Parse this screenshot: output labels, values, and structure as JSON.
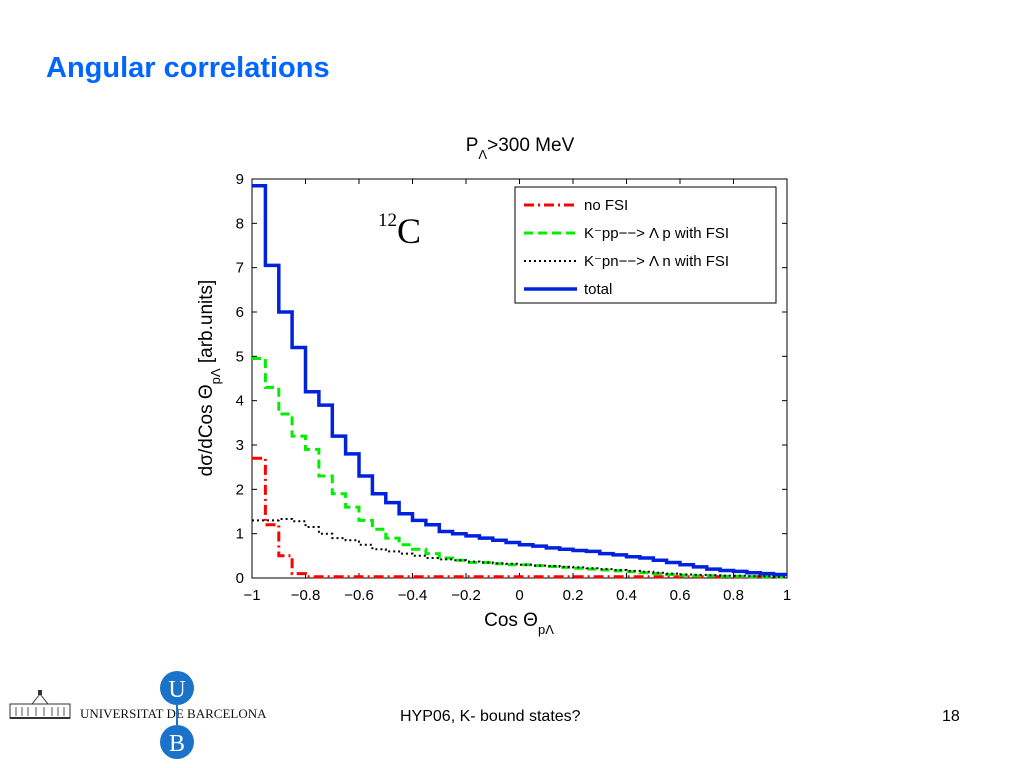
{
  "slide": {
    "title": "Angular correlations",
    "footer_center": "HYP06, K- bound states?",
    "page_number": "18",
    "university": "UNIVERSITAT DE BARCELONA",
    "logo_letters": [
      "U",
      "B"
    ],
    "logo_color": "#1a73c8"
  },
  "chart_data": {
    "type": "line",
    "step": true,
    "title": "P",
    "title_sub": "Λ",
    "title_rest": ">300 MeV",
    "annotation_sup": "12",
    "annotation": "C",
    "xlabel": "Cos Θ",
    "xlabel_sub": "pΛ",
    "ylabel": "dσ/dCos Θ",
    "ylabel_sub": "pΛ",
    "ylabel_rest": " [arb.units]",
    "xlim": [
      -1,
      1
    ],
    "ylim": [
      0,
      9
    ],
    "xticks": [
      -1,
      -0.8,
      -0.6,
      -0.4,
      -0.2,
      0,
      0.2,
      0.4,
      0.6,
      0.8,
      1
    ],
    "xtick_labels": [
      "−1",
      "−0.8",
      "−0.6",
      "−0.4",
      "−0.2",
      "0",
      "0.2",
      "0.4",
      "0.6",
      "0.8",
      "1"
    ],
    "yticks": [
      0,
      1,
      2,
      3,
      4,
      5,
      6,
      7,
      8,
      9
    ],
    "ytick_labels": [
      "0",
      "1",
      "2",
      "3",
      "4",
      "5",
      "6",
      "7",
      "8",
      "9"
    ],
    "grid": false,
    "legend_position": "top-right",
    "series": [
      {
        "name": "no FSI",
        "color": "#ff0000",
        "style": "dashdot",
        "width": 3,
        "x": [
          -1,
          -0.95,
          -0.9,
          -0.85,
          -0.8,
          -0.75,
          -0.7,
          -0.65,
          -0.6,
          -0.55,
          -0.5,
          -0.45,
          -0.4,
          -0.35,
          -0.3,
          -0.25,
          -0.2,
          -0.15,
          -0.1,
          -0.05,
          0,
          0.05,
          0.1,
          0.15,
          0.2,
          0.25,
          0.3,
          0.35,
          0.4,
          0.45,
          0.5,
          0.55,
          0.6,
          0.65,
          0.7,
          0.75,
          0.8,
          0.85,
          0.9,
          0.95,
          1
        ],
        "y": [
          2.7,
          1.2,
          0.5,
          0.1,
          0.03,
          0.03,
          0.03,
          0.03,
          0.03,
          0.03,
          0.03,
          0.03,
          0.03,
          0.03,
          0.03,
          0.03,
          0.03,
          0.03,
          0.03,
          0.03,
          0.03,
          0.03,
          0.03,
          0.03,
          0.03,
          0.03,
          0.03,
          0.03,
          0.03,
          0.03,
          0.03,
          0.03,
          0.03,
          0.03,
          0.03,
          0.03,
          0.03,
          0.03,
          0.03,
          0.03,
          0.03
        ]
      },
      {
        "name": "K⁻pp−−> Λ p with FSI",
        "color": "#00ee00",
        "style": "dashed",
        "width": 3,
        "x": [
          -1,
          -0.95,
          -0.9,
          -0.85,
          -0.8,
          -0.75,
          -0.7,
          -0.65,
          -0.6,
          -0.55,
          -0.5,
          -0.45,
          -0.4,
          -0.35,
          -0.3,
          -0.25,
          -0.2,
          -0.15,
          -0.1,
          -0.05,
          0,
          0.05,
          0.1,
          0.15,
          0.2,
          0.25,
          0.3,
          0.35,
          0.4,
          0.45,
          0.5,
          0.55,
          0.6,
          0.65,
          0.7,
          0.75,
          0.8,
          0.85,
          0.9,
          0.95,
          1
        ],
        "y": [
          4.95,
          4.3,
          3.7,
          3.2,
          2.9,
          2.3,
          1.9,
          1.6,
          1.3,
          1.1,
          0.9,
          0.75,
          0.65,
          0.55,
          0.45,
          0.4,
          0.35,
          0.35,
          0.32,
          0.3,
          0.3,
          0.28,
          0.26,
          0.24,
          0.22,
          0.2,
          0.18,
          0.16,
          0.14,
          0.12,
          0.1,
          0.08,
          0.06,
          0.05,
          0.05,
          0.04,
          0.04,
          0.03,
          0.03,
          0.03,
          0.03
        ]
      },
      {
        "name": "K⁻pn−−> Λ n with FSI",
        "color": "#000000",
        "style": "dotted",
        "width": 2,
        "x": [
          -1,
          -0.95,
          -0.9,
          -0.85,
          -0.8,
          -0.75,
          -0.7,
          -0.65,
          -0.6,
          -0.55,
          -0.5,
          -0.45,
          -0.4,
          -0.35,
          -0.3,
          -0.25,
          -0.2,
          -0.15,
          -0.1,
          -0.05,
          0,
          0.05,
          0.1,
          0.15,
          0.2,
          0.25,
          0.3,
          0.35,
          0.4,
          0.45,
          0.5,
          0.55,
          0.6,
          0.65,
          0.7,
          0.75,
          0.8,
          0.85,
          0.9,
          0.95,
          1
        ],
        "y": [
          1.3,
          1.3,
          1.33,
          1.28,
          1.15,
          1.0,
          0.9,
          0.85,
          0.75,
          0.65,
          0.6,
          0.55,
          0.5,
          0.45,
          0.42,
          0.4,
          0.37,
          0.35,
          0.33,
          0.32,
          0.3,
          0.28,
          0.27,
          0.25,
          0.24,
          0.22,
          0.2,
          0.18,
          0.16,
          0.14,
          0.12,
          0.1,
          0.08,
          0.07,
          0.06,
          0.05,
          0.05,
          0.04,
          0.04,
          0.03,
          0.03
        ]
      },
      {
        "name": "total",
        "color": "#0022dd",
        "style": "solid",
        "width": 3.5,
        "x": [
          -1,
          -0.95,
          -0.9,
          -0.85,
          -0.8,
          -0.75,
          -0.7,
          -0.65,
          -0.6,
          -0.55,
          -0.5,
          -0.45,
          -0.4,
          -0.35,
          -0.3,
          -0.25,
          -0.2,
          -0.15,
          -0.1,
          -0.05,
          0,
          0.05,
          0.1,
          0.15,
          0.2,
          0.25,
          0.3,
          0.35,
          0.4,
          0.45,
          0.5,
          0.55,
          0.6,
          0.65,
          0.7,
          0.75,
          0.8,
          0.85,
          0.9,
          0.95,
          1
        ],
        "y": [
          8.85,
          7.05,
          6.0,
          5.2,
          4.2,
          3.9,
          3.2,
          2.8,
          2.3,
          1.9,
          1.7,
          1.45,
          1.3,
          1.2,
          1.05,
          1.0,
          0.95,
          0.9,
          0.85,
          0.8,
          0.75,
          0.72,
          0.68,
          0.65,
          0.62,
          0.6,
          0.55,
          0.52,
          0.48,
          0.45,
          0.4,
          0.35,
          0.3,
          0.25,
          0.2,
          0.17,
          0.15,
          0.12,
          0.1,
          0.08,
          0.08
        ]
      }
    ]
  }
}
